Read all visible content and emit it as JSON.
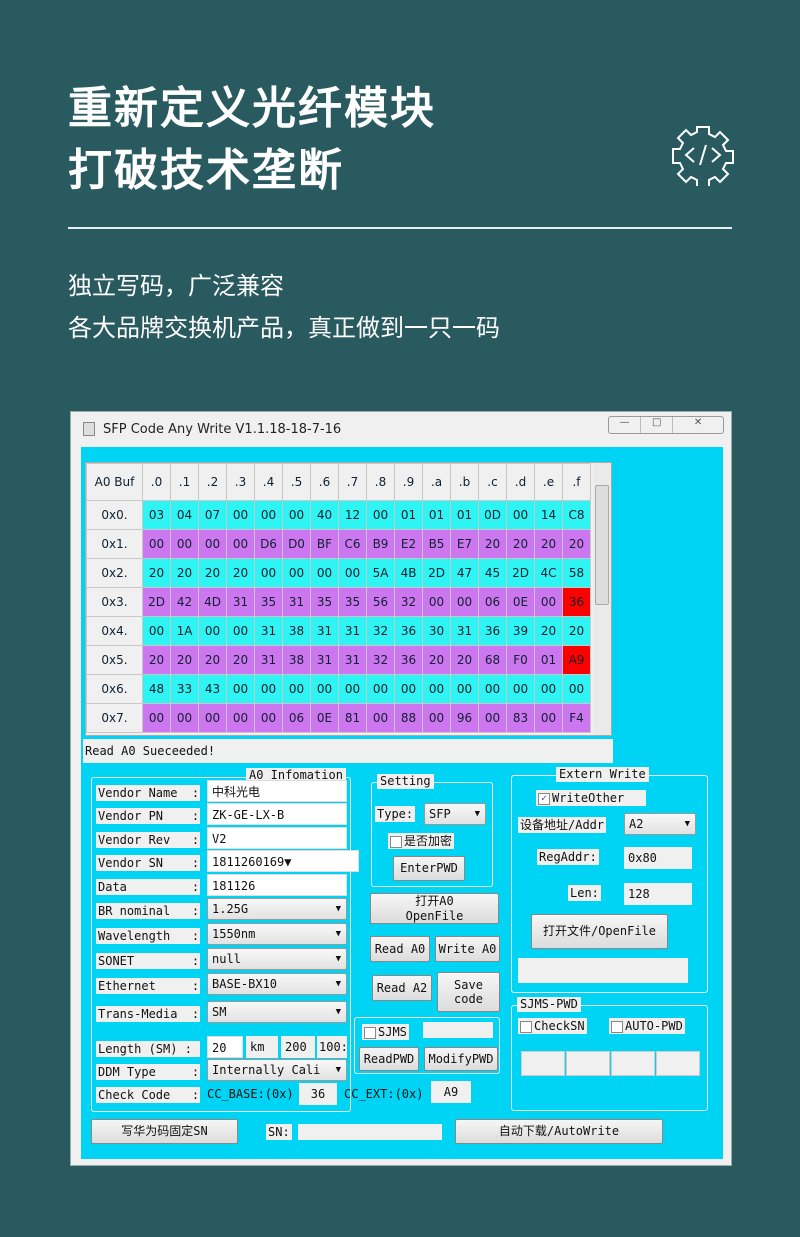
{
  "headline": {
    "line1": "重新定义光纤模块",
    "line2": "打破技术垄断",
    "icon": "code-gear-icon"
  },
  "subtitle": {
    "line1": "独立写码，广泛兼容",
    "line2": "各大品牌交换机产品，真正做到一只一码"
  },
  "colors": {
    "background": "#285a60",
    "client": "#00d4f4",
    "row_even": "#2ef4f4",
    "row_odd": "#cc77f0",
    "highlight": "#ff0000"
  },
  "window": {
    "title": "SFP Code Any Write V1.1.18-18-7-16",
    "minimize": "—",
    "maximize": "□",
    "close": "✕"
  },
  "table": {
    "corner": "A0 Buf",
    "columns": [
      ".0",
      ".1",
      ".2",
      ".3",
      ".4",
      ".5",
      ".6",
      ".7",
      ".8",
      ".9",
      ".a",
      ".b",
      ".c",
      ".d",
      ".e",
      ".f"
    ],
    "rows": [
      {
        "label": "0x0.",
        "cells": [
          "03",
          "04",
          "07",
          "00",
          "00",
          "00",
          "40",
          "12",
          "00",
          "01",
          "01",
          "01",
          "0D",
          "00",
          "14",
          "C8"
        ]
      },
      {
        "label": "0x1.",
        "cells": [
          "00",
          "00",
          "00",
          "00",
          "D6",
          "D0",
          "BF",
          "C6",
          "B9",
          "E2",
          "B5",
          "E7",
          "20",
          "20",
          "20",
          "20"
        ]
      },
      {
        "label": "0x2.",
        "cells": [
          "20",
          "20",
          "20",
          "20",
          "00",
          "00",
          "00",
          "00",
          "5A",
          "4B",
          "2D",
          "47",
          "45",
          "2D",
          "4C",
          "58"
        ]
      },
      {
        "label": "0x3.",
        "cells": [
          "2D",
          "42",
          "4D",
          "31",
          "35",
          "31",
          "35",
          "35",
          "56",
          "32",
          "00",
          "00",
          "06",
          "0E",
          "00",
          "36"
        ]
      },
      {
        "label": "0x4.",
        "cells": [
          "00",
          "1A",
          "00",
          "00",
          "31",
          "38",
          "31",
          "31",
          "32",
          "36",
          "30",
          "31",
          "36",
          "39",
          "20",
          "20"
        ]
      },
      {
        "label": "0x5.",
        "cells": [
          "20",
          "20",
          "20",
          "20",
          "31",
          "38",
          "31",
          "31",
          "32",
          "36",
          "20",
          "20",
          "68",
          "F0",
          "01",
          "A9"
        ]
      },
      {
        "label": "0x6.",
        "cells": [
          "48",
          "33",
          "43",
          "00",
          "00",
          "00",
          "00",
          "00",
          "00",
          "00",
          "00",
          "00",
          "00",
          "00",
          "00",
          "00"
        ]
      },
      {
        "label": "0x7.",
        "cells": [
          "00",
          "00",
          "00",
          "00",
          "00",
          "06",
          "0E",
          "81",
          "00",
          "88",
          "00",
          "96",
          "00",
          "83",
          "00",
          "F4"
        ]
      }
    ],
    "highlighted": [
      [
        3,
        15
      ],
      [
        5,
        15
      ]
    ]
  },
  "status": "Read A0 Sueceeded!",
  "a0": {
    "title": "A0 Infomation",
    "fields": [
      {
        "label": "Vendor Name  :",
        "value": "中科光电",
        "kind": "input"
      },
      {
        "label": "Vendor PN    :",
        "value": "ZK-GE-LX-B",
        "kind": "input"
      },
      {
        "label": "Vendor Rev   :",
        "value": "V2",
        "kind": "input"
      },
      {
        "label": "Vendor SN    :",
        "value": "1811260169",
        "kind": "combo"
      },
      {
        "label": "Data         :",
        "value": "181126",
        "kind": "input"
      },
      {
        "label": "BR nominal   :",
        "value": "1.25G",
        "kind": "select"
      },
      {
        "label": "Wavelength   :",
        "value": "1550nm",
        "kind": "select"
      },
      {
        "label": "SONET        :",
        "value": "null",
        "kind": "select"
      },
      {
        "label": "Ethernet     :",
        "value": "BASE-BX10",
        "kind": "select"
      },
      {
        "label": "Trans-Media  :",
        "value": "SM",
        "kind": "select"
      }
    ],
    "length": {
      "label": "Length (SM) :",
      "value": "20",
      "unit": "km",
      "v2": "200",
      "v3": "100:"
    },
    "ddm": {
      "label": "DDM Type     :",
      "value": "Internally Cali"
    },
    "check": {
      "label": "Check Code   :",
      "base_label": "CC_BASE:(0x)",
      "base": "36",
      "ext_label": "CC_EXT:(0x)",
      "ext": "A9"
    }
  },
  "setting": {
    "title": "Setting",
    "type_label": "Type:",
    "type": "SFP",
    "encrypt": "是否加密",
    "enter_pwd": "EnterPWD"
  },
  "buttons": {
    "open_a0_1": "打开A0",
    "open_a0_2": "OpenFile",
    "read_a0": "Read A0",
    "write_a0": "Write A0",
    "read_a2": "Read A2",
    "save_1": "Save",
    "save_2": "code",
    "read_pwd": "ReadPWD",
    "modify_pwd": "ModifyPWD",
    "huawei": "写华为码固定SN",
    "auto": "自动下载/AutoWrite"
  },
  "sjms": {
    "label": "SJMS"
  },
  "extern": {
    "title": "Extern Write",
    "write_other": "WriteOther",
    "addr_label": "设备地址/Addr",
    "addr": "A2",
    "reg_label": "RegAddr:",
    "reg": "0x80",
    "len_label": "Len:",
    "len": "128",
    "open_file": "打开文件/OpenFile"
  },
  "sjms_pwd": {
    "title": "SJMS-PWD",
    "check_sn": "CheckSN",
    "auto_pwd": "AUTO-PWD"
  },
  "sn": {
    "label": "SN:"
  }
}
